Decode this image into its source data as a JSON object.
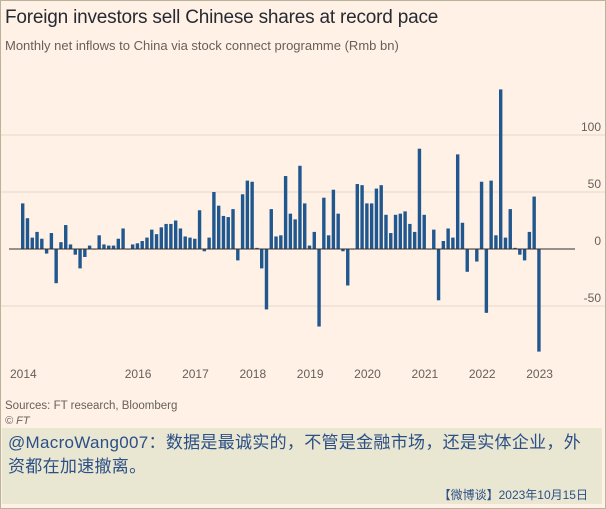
{
  "header": {
    "title": "Foreign investors sell Chinese shares at record pace",
    "subtitle": "Monthly net inflows to China via stock connect programme (Rmb bn)"
  },
  "footer": {
    "source": "Sources: FT research, Bloomberg",
    "credit": "© FT"
  },
  "caption": {
    "text": "@MacroWang007：数据是最诚实的，不管是金融市场，还是实体企业，外资都在加速撤离。",
    "dateline": "【微博谈】2023年10月15日"
  },
  "colors": {
    "bar": "#21578f",
    "background": "#fff1e5",
    "gridline": "#e5d9cb",
    "zero_line": "#33302e"
  },
  "chart_data": {
    "type": "bar",
    "title": "Foreign investors sell Chinese shares at record pace",
    "subtitle": "Monthly net inflows to China via stock connect programme (Rmb bn)",
    "xlabel": "",
    "ylabel": "",
    "ylim": [
      -90,
      145
    ],
    "yticks": [
      -50,
      0,
      50,
      100
    ],
    "ytick_labels": [
      "-50",
      "0",
      "50",
      "100"
    ],
    "xticks": [
      "2014",
      "2016",
      "2017",
      "2018",
      "2019",
      "2020",
      "2021",
      "2022",
      "2023"
    ],
    "start_month": "2014-01",
    "grid": true,
    "gridline_axis": "y",
    "y_axis_position": "right",
    "values": [
      40,
      27,
      10,
      15,
      9,
      -4,
      14,
      -30,
      6,
      21,
      4,
      -5,
      -17,
      -7,
      3,
      0,
      12,
      4,
      3,
      3,
      9,
      18,
      0,
      4,
      5,
      7,
      10,
      17,
      13,
      19,
      22,
      22,
      25,
      18,
      11,
      10,
      9,
      34,
      -2,
      10,
      50,
      38,
      29,
      28,
      35,
      -10,
      48,
      60,
      59,
      1,
      -17,
      -53,
      35,
      11,
      12,
      64,
      31,
      26,
      73,
      40,
      3,
      15,
      -68,
      45,
      12,
      52,
      31,
      -2,
      -32,
      0,
      57,
      56,
      40,
      40,
      53,
      56,
      30,
      14,
      30,
      31,
      33,
      22,
      15,
      88,
      30,
      0,
      17,
      -45,
      7,
      18,
      10,
      83,
      23,
      -20,
      0,
      -11,
      59,
      -56,
      60,
      12,
      140,
      10,
      35,
      1,
      -5,
      -10,
      15,
      46,
      -90
    ]
  }
}
